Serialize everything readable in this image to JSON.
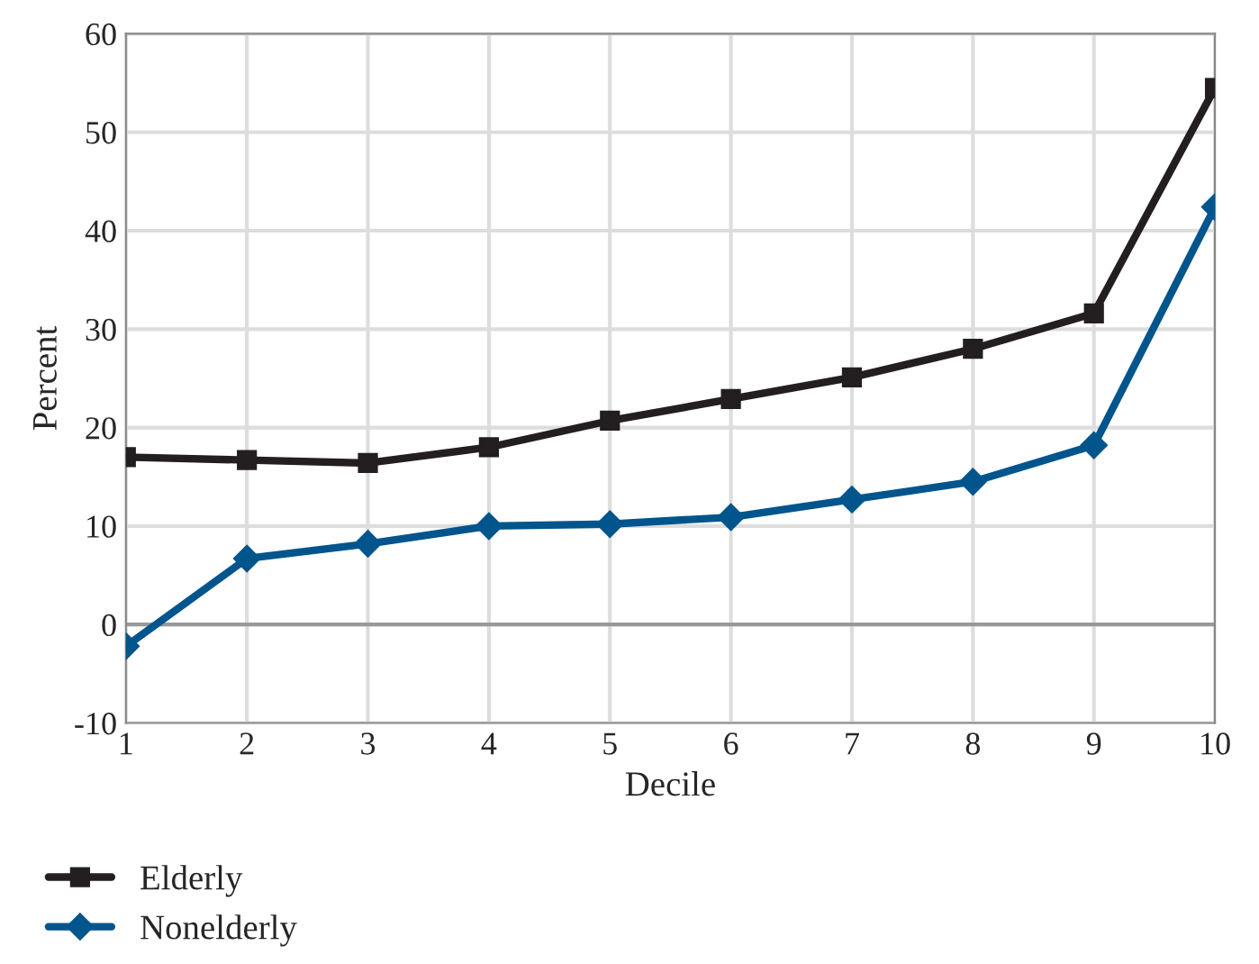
{
  "chart_data": {
    "type": "line",
    "xlabel": "Decile",
    "ylabel": "Percent",
    "x": [
      1,
      2,
      3,
      4,
      5,
      6,
      7,
      8,
      9,
      10
    ],
    "xlim": [
      1,
      10
    ],
    "xticks": [
      1,
      2,
      3,
      4,
      5,
      6,
      7,
      8,
      9,
      10
    ],
    "ylim": [
      -10,
      60
    ],
    "yticks": [
      -10,
      0,
      10,
      20,
      30,
      40,
      50,
      60
    ],
    "grid": true,
    "legend": "bottom left",
    "line_style": "solid",
    "ref_lines": [
      {
        "axis": "y",
        "value": 0,
        "color": "#999999"
      }
    ],
    "series": [
      {
        "name": "Elderly",
        "color": "#231f20",
        "marker": "square",
        "values": [
          17,
          16.7,
          16.4,
          18,
          20.7,
          22.9,
          25.1,
          28,
          31.6,
          54.5
        ]
      },
      {
        "name": "Nonelderly",
        "color": "#00558c",
        "marker": "diamond",
        "values": [
          -2.2,
          6.7,
          8.2,
          10,
          10.2,
          10.9,
          12.7,
          14.5,
          18.2,
          42.4
        ]
      }
    ]
  }
}
